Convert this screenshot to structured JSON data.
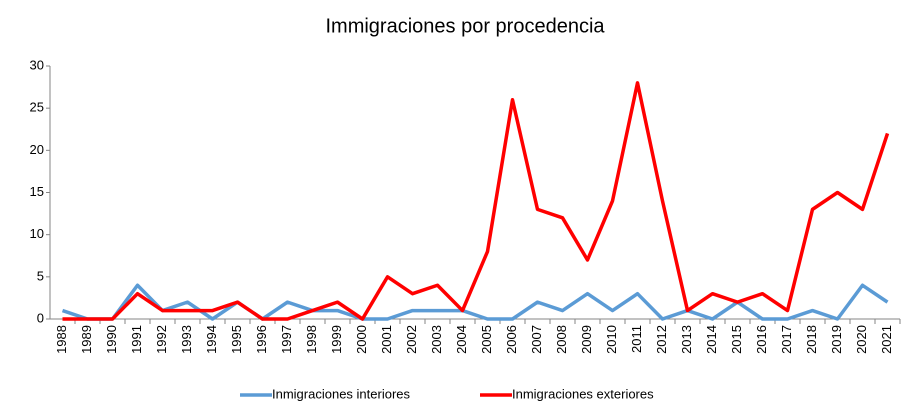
{
  "chart_data": {
    "type": "line",
    "title": "Immigraciones por procedencia",
    "categories": [
      "1988",
      "1989",
      "1990",
      "1991",
      "1992",
      "1993",
      "1994",
      "1995",
      "1996",
      "1997",
      "1998",
      "1999",
      "2000",
      "2001",
      "2002",
      "2003",
      "2004",
      "2005",
      "2006",
      "2007",
      "2008",
      "2009",
      "2010",
      "2011",
      "2012",
      "2013",
      "2014",
      "2015",
      "2016",
      "2017",
      "2018",
      "2019",
      "2020",
      "2021"
    ],
    "series": [
      {
        "name": "Inmigraciones interiores",
        "color": "#5b9bd5",
        "values": [
          1,
          0,
          0,
          4,
          1,
          2,
          0,
          2,
          0,
          2,
          1,
          1,
          0,
          0,
          1,
          1,
          1,
          0,
          0,
          2,
          1,
          3,
          1,
          3,
          0,
          1,
          0,
          2,
          0,
          0,
          1,
          0,
          4,
          2
        ]
      },
      {
        "name": "Inmigraciones exteriores",
        "color": "#ff0000",
        "values": [
          0,
          0,
          0,
          3,
          1,
          1,
          1,
          2,
          0,
          0,
          1,
          2,
          0,
          5,
          3,
          4,
          1,
          8,
          26,
          13,
          12,
          7,
          14,
          28,
          14,
          1,
          3,
          2,
          3,
          1,
          13,
          15,
          13,
          22
        ]
      }
    ],
    "ylim": [
      0,
      30
    ],
    "yticks": [
      0,
      5,
      10,
      15,
      20,
      25,
      30
    ],
    "grid": false,
    "legend": "bottom"
  }
}
